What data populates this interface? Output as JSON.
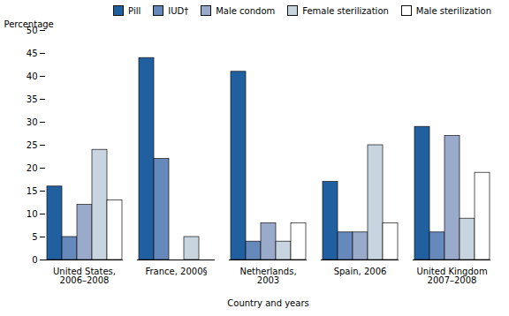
{
  "chart_data": {
    "type": "bar",
    "categories": [
      "United States,\n2006–2008",
      "France, 2000§",
      "Netherlands,\n2003",
      "Spain, 2006",
      "United Kingdom\n2007–2008"
    ],
    "series": [
      {
        "name": "Pill",
        "color": "#2060a0",
        "values": [
          16,
          44,
          41,
          17,
          29
        ]
      },
      {
        "name": "IUD†",
        "color": "#6688bb",
        "values": [
          5,
          22,
          4,
          6,
          6
        ]
      },
      {
        "name": "Male condom",
        "color": "#9aaacb",
        "values": [
          12,
          0,
          8,
          6,
          27
        ]
      },
      {
        "name": "Female sterilization",
        "color": "#c8d4e0",
        "values": [
          24,
          5,
          4,
          25,
          9
        ]
      },
      {
        "name": "Male sterilization",
        "color": "#ffffff",
        "values": [
          13,
          0,
          8,
          8,
          19
        ]
      }
    ],
    "xlabel": "Country and years",
    "ylabel": "Percentage",
    "ylim": [
      0,
      50
    ],
    "yticks": [
      0,
      5,
      10,
      15,
      20,
      25,
      30,
      35,
      40,
      45,
      50
    ],
    "grid": false,
    "legend": "upper right"
  }
}
